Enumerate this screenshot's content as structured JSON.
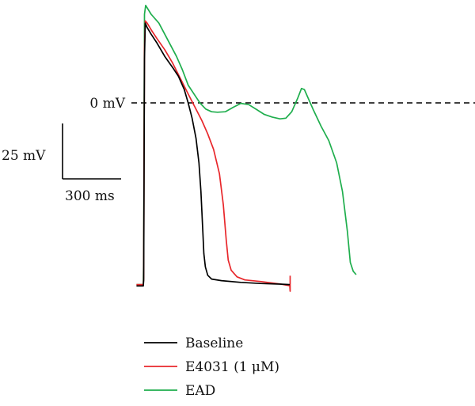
{
  "chart_data": {
    "type": "line",
    "xlabel": "",
    "ylabel": "",
    "reference_line": {
      "label": "0 mV",
      "y": 0,
      "style": "dashed"
    },
    "scale_bar": {
      "vertical_label": "25 mV",
      "horizontal_label": "300 ms",
      "vertical_mV": 25,
      "horizontal_ms": 300
    },
    "x_units": "ms",
    "y_units": "mV",
    "xlim": [
      0,
      1200
    ],
    "ylim": [
      -100,
      40
    ],
    "legend": {
      "placement": "bottom-left"
    },
    "series": [
      {
        "name": "Baseline",
        "color": "#000000",
        "points": [
          [
            -35,
            -82.6
          ],
          [
            -5,
            -82.6
          ],
          [
            0,
            -82.6
          ],
          [
            2,
            -80
          ],
          [
            4,
            -30
          ],
          [
            6,
            20
          ],
          [
            10,
            36
          ],
          [
            20,
            34
          ],
          [
            40,
            31
          ],
          [
            70,
            27
          ],
          [
            110,
            21
          ],
          [
            150,
            16
          ],
          [
            180,
            12
          ],
          [
            210,
            6
          ],
          [
            230,
            0
          ],
          [
            250,
            -7
          ],
          [
            270,
            -16
          ],
          [
            285,
            -27
          ],
          [
            295,
            -40
          ],
          [
            305,
            -58
          ],
          [
            310,
            -68
          ],
          [
            318,
            -74
          ],
          [
            330,
            -77.8
          ],
          [
            350,
            -79.5
          ],
          [
            400,
            -80.2
          ],
          [
            500,
            -81
          ],
          [
            600,
            -81.5
          ],
          [
            700,
            -81.8
          ],
          [
            750,
            -82
          ]
        ]
      },
      {
        "name": "E4031 (1 μM)",
        "color": "#e8272b",
        "points": [
          [
            -35,
            -82
          ],
          [
            -5,
            -82
          ],
          [
            0,
            -82
          ],
          [
            2,
            -79
          ],
          [
            4,
            -20
          ],
          [
            6,
            25
          ],
          [
            10,
            37
          ],
          [
            20,
            36
          ],
          [
            40,
            33
          ],
          [
            70,
            29
          ],
          [
            110,
            24
          ],
          [
            150,
            18
          ],
          [
            190,
            11
          ],
          [
            230,
            4
          ],
          [
            265,
            -2
          ],
          [
            300,
            -8
          ],
          [
            330,
            -14
          ],
          [
            360,
            -21
          ],
          [
            390,
            -32
          ],
          [
            410,
            -46
          ],
          [
            425,
            -62
          ],
          [
            435,
            -71
          ],
          [
            450,
            -75.5
          ],
          [
            480,
            -78.5
          ],
          [
            520,
            -79.9
          ],
          [
            600,
            -80.6
          ],
          [
            700,
            -81.7
          ],
          [
            750,
            -82.5
          ],
          [
            752,
            -85
          ],
          [
            752,
            -78
          ]
        ]
      },
      {
        "name": "EAD",
        "color": "#1fae4d",
        "points": [
          [
            -35,
            -82
          ],
          [
            -5,
            -82
          ],
          [
            0,
            -82
          ],
          [
            2,
            -70
          ],
          [
            4,
            -10
          ],
          [
            6,
            40
          ],
          [
            12,
            44
          ],
          [
            40,
            40
          ],
          [
            80,
            36
          ],
          [
            110,
            31
          ],
          [
            140,
            26
          ],
          [
            170,
            21
          ],
          [
            200,
            15
          ],
          [
            230,
            8
          ],
          [
            260,
            4
          ],
          [
            290,
            0
          ],
          [
            320,
            -2.8
          ],
          [
            350,
            -4
          ],
          [
            380,
            -4.2
          ],
          [
            420,
            -4
          ],
          [
            460,
            -2
          ],
          [
            500,
            -0.2
          ],
          [
            540,
            -0.8
          ],
          [
            580,
            -3
          ],
          [
            620,
            -5.2
          ],
          [
            660,
            -6.4
          ],
          [
            700,
            -7.2
          ],
          [
            730,
            -6.9
          ],
          [
            760,
            -4
          ],
          [
            790,
            2
          ],
          [
            810,
            6.5
          ],
          [
            825,
            6
          ],
          [
            840,
            3
          ],
          [
            870,
            -3
          ],
          [
            910,
            -10.5
          ],
          [
            950,
            -17
          ],
          [
            990,
            -27
          ],
          [
            1020,
            -40
          ],
          [
            1045,
            -58
          ],
          [
            1060,
            -72
          ],
          [
            1075,
            -76
          ],
          [
            1090,
            -77.5
          ]
        ]
      }
    ]
  }
}
